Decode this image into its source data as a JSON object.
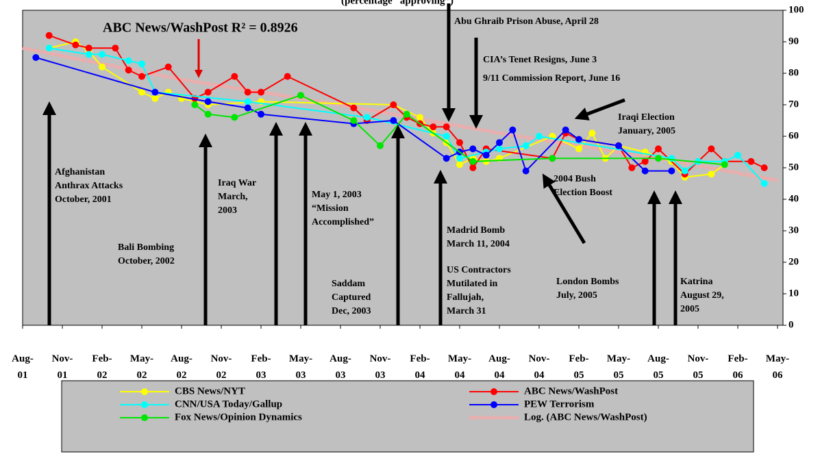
{
  "chart_data": {
    "type": "line",
    "title": "(percentage “approving”)",
    "r_squared_label": "ABC News/WashPost   R² = 0.8926",
    "xlim": [
      "2001-08",
      "2006-05"
    ],
    "xticks": [
      {
        "value": "2001-08",
        "label": "Aug-01"
      },
      {
        "value": "2001-11",
        "label": "Nov-01"
      },
      {
        "value": "2002-02",
        "label": "Feb-02"
      },
      {
        "value": "2002-05",
        "label": "May-02"
      },
      {
        "value": "2002-08",
        "label": "Aug-02"
      },
      {
        "value": "2002-11",
        "label": "Nov-02"
      },
      {
        "value": "2003-02",
        "label": "Feb-03"
      },
      {
        "value": "2003-05",
        "label": "May-03"
      },
      {
        "value": "2003-08",
        "label": "Aug-03"
      },
      {
        "value": "2003-11",
        "label": "Nov-03"
      },
      {
        "value": "2004-02",
        "label": "Feb-04"
      },
      {
        "value": "2004-05",
        "label": "May-04"
      },
      {
        "value": "2004-08",
        "label": "Aug-04"
      },
      {
        "value": "2004-11",
        "label": "Nov-04"
      },
      {
        "value": "2005-02",
        "label": "Feb-05"
      },
      {
        "value": "2005-05",
        "label": "May-05"
      },
      {
        "value": "2005-08",
        "label": "Aug-05"
      },
      {
        "value": "2005-11",
        "label": "Nov-05"
      },
      {
        "value": "2006-02",
        "label": "Feb-06"
      },
      {
        "value": "2006-05",
        "label": "May-06"
      }
    ],
    "ylim": [
      0,
      100
    ],
    "yticks": [
      0,
      10,
      20,
      30,
      40,
      50,
      60,
      70,
      80,
      90,
      100
    ],
    "grid": false,
    "legend_position": "bottom",
    "series": [
      {
        "name": "CBS News/NYT",
        "color": "#ffff00",
        "x": [
          "2001-10",
          "2001-12",
          "2002-01",
          "2002-02",
          "2002-05",
          "2002-06",
          "2002-07",
          "2002-08",
          "2002-10",
          "2003-02",
          "2003-12",
          "2004-02",
          "2004-03",
          "2004-04",
          "2004-05",
          "2004-06",
          "2004-07",
          "2004-08",
          "2004-12",
          "2005-02",
          "2005-03",
          "2005-04",
          "2005-05",
          "2005-07",
          "2005-09",
          "2005-10",
          "2005-12",
          "2006-01"
        ],
        "values": [
          88,
          90,
          87,
          82,
          74,
          72,
          74,
          72,
          70,
          71,
          70,
          66,
          61,
          58,
          51,
          53,
          52,
          53,
          60,
          56,
          61,
          53,
          57,
          55,
          52,
          47,
          48,
          51
        ]
      },
      {
        "name": "ABC News/WashPost",
        "color": "#ff0000",
        "x": [
          "2001-10",
          "2001-12",
          "2002-01",
          "2002-03",
          "2002-04",
          "2002-05",
          "2002-07",
          "2002-09",
          "2002-10",
          "2002-12",
          "2003-01",
          "2003-02",
          "2003-04",
          "2003-09",
          "2003-10",
          "2003-12",
          "2004-01",
          "2004-02",
          "2004-03",
          "2004-04",
          "2004-05",
          "2004-06",
          "2004-07",
          "2004-12",
          "2005-01",
          "2005-02",
          "2005-05",
          "2005-06",
          "2005-07",
          "2005-08",
          "2005-10",
          "2005-12",
          "2006-01",
          "2006-03",
          "2006-04"
        ],
        "values": [
          92,
          89,
          88,
          88,
          81,
          79,
          82,
          72,
          74,
          79,
          74,
          74,
          79,
          69,
          65,
          70,
          66,
          64,
          63,
          63,
          58,
          50,
          56,
          53,
          61,
          59,
          57,
          50,
          52,
          56,
          48,
          56,
          52,
          52,
          50
        ]
      },
      {
        "name": "CNN/USA Today/Gallup",
        "color": "#00ffff",
        "x": [
          "2001-10",
          "2002-01",
          "2002-02",
          "2002-04",
          "2002-05",
          "2002-06",
          "2003-01",
          "2003-10",
          "2004-04",
          "2004-05",
          "2004-07",
          "2004-08",
          "2004-10",
          "2004-11",
          "2005-09",
          "2005-10",
          "2005-11",
          "2006-01",
          "2006-02",
          "2006-04"
        ],
        "values": [
          88,
          86,
          86,
          84,
          83,
          74,
          71,
          66,
          60,
          53,
          55,
          56,
          57,
          60,
          53,
          49,
          52,
          52,
          54,
          45
        ]
      },
      {
        "name": "PEW Terrorism",
        "color": "#0000ff",
        "x": [
          "2001-09",
          "2002-06",
          "2002-10",
          "2003-01",
          "2003-02",
          "2003-09",
          "2003-12",
          "2004-04",
          "2004-05",
          "2004-06",
          "2004-07",
          "2004-08",
          "2004-09",
          "2004-10",
          "2005-01",
          "2005-02",
          "2005-05",
          "2005-07",
          "2005-09"
        ],
        "values": [
          85,
          74,
          71,
          69,
          67,
          64,
          65,
          53,
          55,
          56,
          54,
          58,
          62,
          49,
          62,
          59,
          57,
          49,
          49
        ]
      },
      {
        "name": "Fox News/Opinion Dynamics",
        "color": "#00e600",
        "x": [
          "2002-09",
          "2002-10",
          "2002-12",
          "2003-05",
          "2003-09",
          "2003-11",
          "2004-01",
          "2004-06",
          "2004-12",
          "2005-08",
          "2006-01"
        ],
        "values": [
          70,
          67,
          66,
          73,
          65,
          57,
          67,
          52,
          53,
          53,
          51
        ]
      },
      {
        "name": "Log. (ABC News/WashPost)",
        "color": "#f4a9a9",
        "trend": true,
        "x": [
          "2001-08",
          "2002-08",
          "2003-08",
          "2004-08",
          "2005-08",
          "2006-05"
        ],
        "values": [
          88,
          78,
          70,
          61,
          53,
          46
        ]
      }
    ],
    "annotations": [
      [
        "Abu Ghraib Prison Abuse, April 28"
      ],
      [
        "CIA’s Tenet Resigns, June 3"
      ],
      [
        "9/11 Commission Report, June 16"
      ],
      [
        "Iraqi Election",
        "January, 2005"
      ],
      [
        "Afghanistan",
        "Anthrax Attacks",
        "October, 2001"
      ],
      [
        "Iraq War",
        "March,",
        "2003"
      ],
      [
        "May 1, 2003",
        "“Mission",
        "Accomplished”"
      ],
      [
        "Bali Bombing",
        "October, 2002"
      ],
      [
        "Madrid Bomb",
        "March 11, 2004"
      ],
      [
        "US Contractors",
        "Mutilated in",
        "Fallujah,",
        "March 31"
      ],
      [
        "Saddam",
        "Captured",
        "Dec, 2003"
      ],
      [
        "2004 Bush",
        "Election Boost"
      ],
      [
        "London Bombs",
        "July, 2005"
      ],
      [
        "Katrina",
        "August 29,",
        "2005"
      ]
    ]
  }
}
